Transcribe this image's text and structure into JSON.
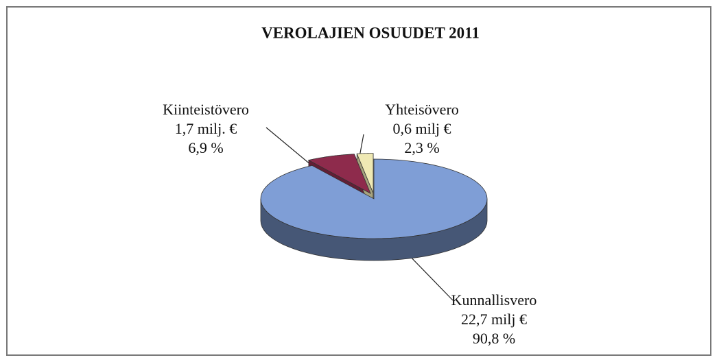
{
  "chart_data": {
    "type": "pie",
    "title": "VEROLAJIEN OSUUDET 2011",
    "categories": [
      "Kunnallisvero",
      "Kiinteistövero",
      "Yhteisövero"
    ],
    "values": [
      90.8,
      6.9,
      2.3
    ],
    "value_labels": [
      "90,8 %",
      "6,9 %",
      "2,3 %"
    ],
    "amounts": [
      22.7,
      1.7,
      0.6
    ],
    "amount_labels": [
      "22,7 milj €",
      "1,7 milj. €",
      "0,6 milj €"
    ],
    "colors": [
      "#7f9ed6",
      "#8e2b4c",
      "#efe9b4"
    ]
  }
}
